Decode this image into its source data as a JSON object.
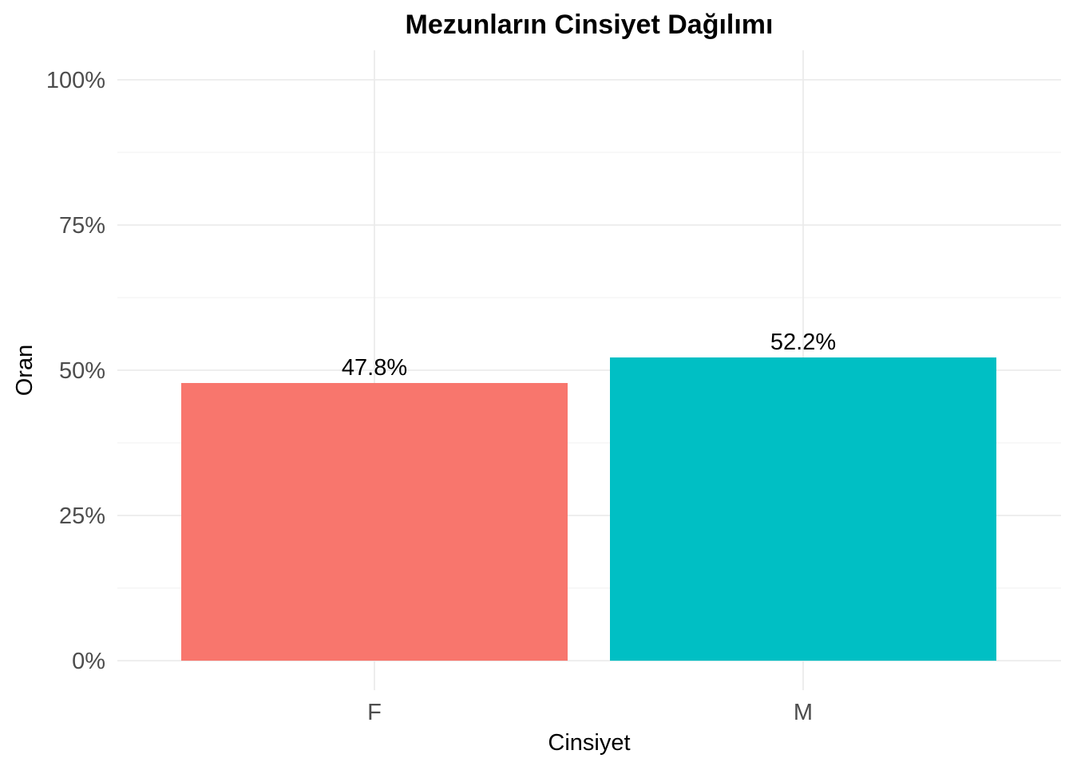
{
  "chart_data": {
    "type": "bar",
    "title": "Mezunların Cinsiyet Dağılımı",
    "xlabel": "Cinsiyet",
    "ylabel": "Oran",
    "categories": [
      "F",
      "M"
    ],
    "values": [
      0.478,
      0.522
    ],
    "data_labels": [
      "47.8%",
      "52.2%"
    ],
    "colors": [
      "#F8766D",
      "#00BFC4"
    ],
    "ylim": [
      0,
      1
    ],
    "y_ticks": [
      0,
      0.25,
      0.5,
      0.75,
      1
    ],
    "y_tick_labels": [
      "0%",
      "25%",
      "50%",
      "75%",
      "100%"
    ],
    "grid": true,
    "legend": "none"
  }
}
